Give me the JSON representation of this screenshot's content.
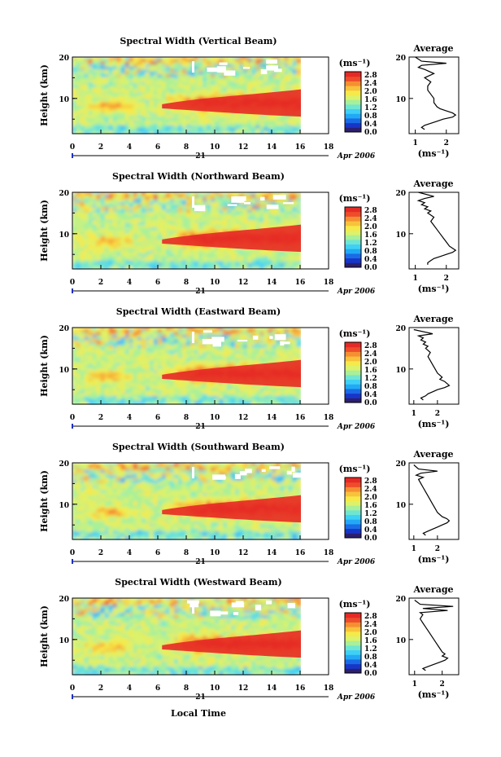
{
  "colors": {
    "colorbar": [
      "#2b1f6e",
      "#1736c8",
      "#1a6be6",
      "#22a9f5",
      "#3fd0f5",
      "#6fe6d2",
      "#a8f09a",
      "#dcf26a",
      "#f6e94a",
      "#f8c23c",
      "#f58f32",
      "#ee4c2b",
      "#e52a25"
    ]
  },
  "shared": {
    "day_label": "21",
    "date_label": "Apr 2006",
    "xlabel": "Local Time",
    "x_ticks": [
      "0",
      "2",
      "4",
      "6",
      "8",
      "10",
      "12",
      "14",
      "16",
      "18"
    ],
    "y_label": "Height (km)",
    "y_ticks": [
      "20",
      "10"
    ],
    "colorbar_unit": "(ms⁻¹)",
    "colorbar_ticks": [
      "2.8",
      "2.4",
      "2.0",
      "1.6",
      "1.2",
      "0.8",
      "0.4",
      "0.0"
    ],
    "profile_title": "Average",
    "profile_unit": "(ms⁻¹)"
  },
  "chart_data": [
    {
      "type": "heatmap",
      "title": "Spectral Width (Vertical Beam)",
      "xlabel": "Local Time",
      "ylabel": "Height (km)",
      "xlim": [
        0,
        18
      ],
      "ylim": [
        1.5,
        20
      ],
      "clim": [
        0.0,
        2.8
      ],
      "profile": {
        "type": "line",
        "title": "Average",
        "x_ticks": [
          "1",
          "2"
        ],
        "xlim": [
          0.8,
          2.4
        ],
        "x": [
          1.3,
          1.2,
          1.3,
          1.5,
          1.7,
          1.9,
          2.2,
          2.3,
          2.2,
          2.0,
          1.8,
          1.7,
          1.6,
          1.6,
          1.5,
          1.4,
          1.4,
          1.5,
          1.3,
          1.6,
          1.3,
          1.1,
          1.2,
          2.0,
          1.2,
          1.1,
          1.0
        ],
        "y": [
          2.5,
          3,
          3.5,
          4,
          4.5,
          5,
          5.5,
          6,
          6.5,
          7,
          7.5,
          8,
          9,
          10,
          11,
          12,
          13,
          14,
          15,
          16,
          17,
          17.5,
          18,
          18.5,
          19,
          19.5,
          20
        ]
      }
    },
    {
      "type": "heatmap",
      "title": "Spectral Width (Northward Beam)",
      "xlabel": "Local Time",
      "ylabel": "Height (km)",
      "xlim": [
        0,
        18
      ],
      "ylim": [
        1.5,
        20
      ],
      "clim": [
        0.0,
        2.8
      ],
      "profile": {
        "type": "line",
        "title": "Average",
        "x_ticks": [
          "1",
          "2"
        ],
        "xlim": [
          0.8,
          2.4
        ],
        "x": [
          1.4,
          1.4,
          1.5,
          1.6,
          1.8,
          2.0,
          2.2,
          2.3,
          2.2,
          2.1,
          2.0,
          1.9,
          1.8,
          1.7,
          1.6,
          1.5,
          1.6,
          1.4,
          1.5,
          1.3,
          1.4,
          1.2,
          1.3,
          1.1,
          1.3,
          1.6,
          1.1
        ],
        "y": [
          2.5,
          3,
          3.5,
          4,
          4.5,
          5,
          5.5,
          6,
          6.5,
          7,
          8,
          9,
          10,
          11,
          12,
          13,
          14,
          15,
          15.5,
          16,
          16.5,
          17,
          17.5,
          18,
          18.5,
          19,
          20
        ]
      }
    },
    {
      "type": "heatmap",
      "title": "Spectral Width (Eastward Beam)",
      "xlabel": "Local Time",
      "ylabel": "Height (km)",
      "xlim": [
        0,
        18
      ],
      "ylim": [
        1.5,
        20
      ],
      "clim": [
        0.0,
        2.8
      ],
      "profile": {
        "type": "line",
        "title": "Average",
        "x_ticks": [
          "1",
          "2"
        ],
        "xlim": [
          0.8,
          2.9
        ],
        "x": [
          1.4,
          1.3,
          1.5,
          1.6,
          1.8,
          2.0,
          2.3,
          2.5,
          2.4,
          2.3,
          2.1,
          2.2,
          2.0,
          1.9,
          1.8,
          1.7,
          1.6,
          1.7,
          1.5,
          1.6,
          1.4,
          1.5,
          1.3,
          1.4,
          1.2,
          1.8,
          1.0
        ],
        "y": [
          2.5,
          3,
          3.5,
          4,
          4.5,
          5,
          5.5,
          6,
          6.5,
          7,
          7.5,
          8,
          9,
          10,
          11,
          12,
          13,
          14,
          15,
          15.5,
          16,
          16.5,
          17,
          17.5,
          18,
          18.5,
          19.5
        ]
      }
    },
    {
      "type": "heatmap",
      "title": "Spectral Width (Southward Beam)",
      "xlabel": "Local Time",
      "ylabel": "Height (km)",
      "xlim": [
        0,
        18
      ],
      "ylim": [
        1.5,
        20
      ],
      "clim": [
        0.0,
        2.8
      ],
      "profile": {
        "type": "line",
        "title": "Average",
        "x_ticks": [
          "1",
          "2"
        ],
        "xlim": [
          0.8,
          2.9
        ],
        "x": [
          1.5,
          1.4,
          1.6,
          1.8,
          2.0,
          2.2,
          2.4,
          2.5,
          2.4,
          2.2,
          2.0,
          1.9,
          1.8,
          1.7,
          1.6,
          1.5,
          1.4,
          1.3,
          1.2,
          1.4,
          1.1,
          1.3,
          2.0,
          1.2,
          1.0
        ],
        "y": [
          2.5,
          3,
          3.5,
          4,
          4.5,
          5,
          5.5,
          6,
          6.5,
          7,
          8,
          9,
          10,
          11,
          12,
          13,
          14,
          15,
          16,
          16.5,
          17,
          17.5,
          18,
          18.5,
          19.5
        ]
      }
    },
    {
      "type": "heatmap",
      "title": "Spectral Width (Westward Beam)",
      "xlabel": "Local Time",
      "ylabel": "Height (km)",
      "xlim": [
        0,
        18
      ],
      "ylim": [
        1.5,
        20
      ],
      "clim": [
        0.0,
        2.8
      ],
      "profile": {
        "type": "line",
        "title": "Average",
        "x_ticks": [
          "1",
          "2"
        ],
        "xlim": [
          0.8,
          2.6
        ],
        "x": [
          1.4,
          1.3,
          1.5,
          1.7,
          1.9,
          2.1,
          2.2,
          2.0,
          2.1,
          2.0,
          1.9,
          1.8,
          1.7,
          1.6,
          1.5,
          1.4,
          1.3,
          1.2,
          1.3,
          1.2,
          2.2,
          1.3,
          2.4,
          1.2,
          1.0
        ],
        "y": [
          2.5,
          3,
          3.5,
          4,
          4.5,
          5,
          5.5,
          6,
          6.5,
          7,
          8,
          9,
          10,
          11,
          12,
          13,
          14,
          15,
          16,
          16.5,
          17,
          17.5,
          18,
          18.5,
          19.5
        ]
      }
    }
  ]
}
